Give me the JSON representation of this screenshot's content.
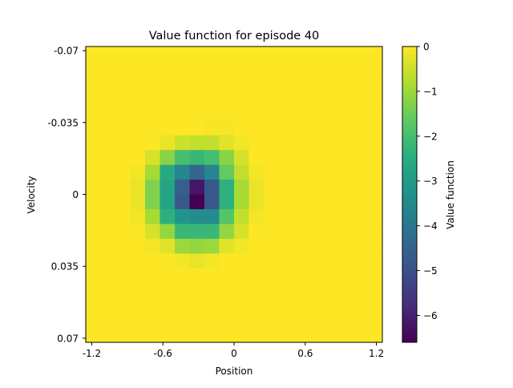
{
  "chart_data": {
    "type": "heatmap",
    "title": "Value function for episode 40",
    "xlabel": "Position",
    "ylabel": "Velocity",
    "x_ticks": [
      -1.2,
      -0.6,
      0,
      0.6,
      1.2
    ],
    "x_tick_labels": [
      "-1.2",
      "-0.6",
      "0",
      "0.6",
      "1.2"
    ],
    "y_ticks": [
      -0.07,
      -0.035,
      0,
      0.035,
      0.07
    ],
    "y_tick_labels": [
      "-0.07",
      "-0.035",
      "0",
      "0.035",
      "0.07"
    ],
    "xlim": [
      -1.25,
      1.25
    ],
    "ylim": [
      -0.072,
      0.072
    ],
    "y_inverted": true,
    "grid": false,
    "rows": 20,
    "cols": 20,
    "colormap": "viridis",
    "colorbar": {
      "label": "Value function",
      "vmin": -6.6,
      "vmax": 0,
      "ticks": [
        0,
        -1,
        -2,
        -3,
        -4,
        -5,
        -6
      ],
      "tick_labels": [
        "0",
        "−1",
        "−2",
        "−3",
        "−4",
        "−5",
        "−6"
      ]
    },
    "values": [
      [
        0,
        0,
        0,
        0,
        0,
        0,
        0,
        0,
        0,
        0,
        0,
        0,
        0,
        0,
        0,
        0,
        0,
        0,
        0,
        0
      ],
      [
        0,
        0,
        0,
        0,
        0,
        0,
        0,
        0,
        0,
        0,
        0,
        0,
        0,
        0,
        0,
        0,
        0,
        0,
        0,
        0
      ],
      [
        0,
        0,
        0,
        0,
        0,
        0,
        0,
        0,
        0,
        0,
        0,
        0,
        0,
        0,
        0,
        0,
        0,
        0,
        0,
        0
      ],
      [
        0,
        0,
        0,
        0,
        0,
        0,
        0,
        0,
        0,
        0,
        0,
        0,
        0,
        0,
        0,
        0,
        0,
        0,
        0,
        0
      ],
      [
        0,
        0,
        0,
        0,
        0,
        0,
        0,
        0,
        0,
        0,
        0,
        0,
        0,
        0,
        0,
        0,
        0,
        0,
        0,
        0
      ],
      [
        0,
        0,
        0,
        0,
        0,
        0,
        0,
        0,
        -0.05,
        -0.05,
        0,
        0,
        0,
        0,
        0,
        0,
        0,
        0,
        0,
        0
      ],
      [
        0,
        0,
        0,
        0,
        0,
        -0.2,
        -0.5,
        -0.6,
        -0.6,
        -0.3,
        -0.1,
        0,
        0,
        0,
        0,
        0,
        0,
        0,
        0,
        0
      ],
      [
        0,
        0,
        0,
        0,
        -0.4,
        -1.2,
        -2.0,
        -2.2,
        -2.0,
        -1.2,
        -0.4,
        0,
        0,
        0,
        0,
        0,
        0,
        0,
        0,
        0
      ],
      [
        0,
        0,
        0,
        -0.1,
        -0.9,
        -2.6,
        -3.6,
        -4.4,
        -3.6,
        -1.6,
        -0.6,
        -0.1,
        0,
        0,
        0,
        0,
        0,
        0,
        0,
        0
      ],
      [
        0,
        0,
        0,
        -0.2,
        -1.3,
        -2.8,
        -4.6,
        -6.2,
        -4.8,
        -2.4,
        -0.9,
        -0.2,
        0,
        0,
        0,
        0,
        0,
        0,
        0,
        0
      ],
      [
        0,
        0,
        0,
        -0.2,
        -1.3,
        -2.8,
        -4.8,
        -6.6,
        -4.8,
        -2.4,
        -0.9,
        -0.2,
        0,
        0,
        0,
        0,
        0,
        0,
        0,
        0
      ],
      [
        0,
        0,
        0,
        -0.1,
        -0.9,
        -2.4,
        -3.2,
        -3.4,
        -3.4,
        -1.8,
        -0.6,
        -0.1,
        0,
        0,
        0,
        0,
        0,
        0,
        0,
        0
      ],
      [
        0,
        0,
        0,
        0,
        -0.4,
        -1.1,
        -2.2,
        -2.2,
        -2.2,
        -1.1,
        -0.4,
        0,
        0,
        0,
        0,
        0,
        0,
        0,
        0,
        0
      ],
      [
        0,
        0,
        0,
        0,
        -0.1,
        -0.3,
        -1.0,
        -1.1,
        -1.0,
        -0.3,
        -0.1,
        0,
        0,
        0,
        0,
        0,
        0,
        0,
        0,
        0
      ],
      [
        0,
        0,
        0,
        0,
        0,
        0,
        -0.1,
        -0.2,
        -0.1,
        0,
        0,
        0,
        0,
        0,
        0,
        0,
        0,
        0,
        0,
        0
      ],
      [
        0,
        0,
        0,
        0,
        0,
        0,
        0,
        0,
        0,
        0,
        0,
        0,
        0,
        0,
        0,
        0,
        0,
        0,
        0,
        0
      ],
      [
        0,
        0,
        0,
        0,
        0,
        0,
        0,
        0,
        0,
        0,
        0,
        0,
        0,
        0,
        0,
        0,
        0,
        0,
        0,
        0
      ],
      [
        0,
        0,
        0,
        0,
        0,
        0,
        0,
        0,
        0,
        0,
        0,
        0,
        0,
        0,
        0,
        0,
        0,
        0,
        0,
        0
      ],
      [
        0,
        0,
        0,
        0,
        0,
        0,
        0,
        0,
        0,
        0,
        0,
        0,
        0,
        0,
        0,
        0,
        0,
        0,
        0,
        0
      ],
      [
        0,
        0,
        0,
        0,
        0,
        0,
        0,
        0,
        0,
        0,
        0,
        0,
        0,
        0,
        0,
        0,
        0,
        0,
        0,
        0
      ]
    ]
  }
}
